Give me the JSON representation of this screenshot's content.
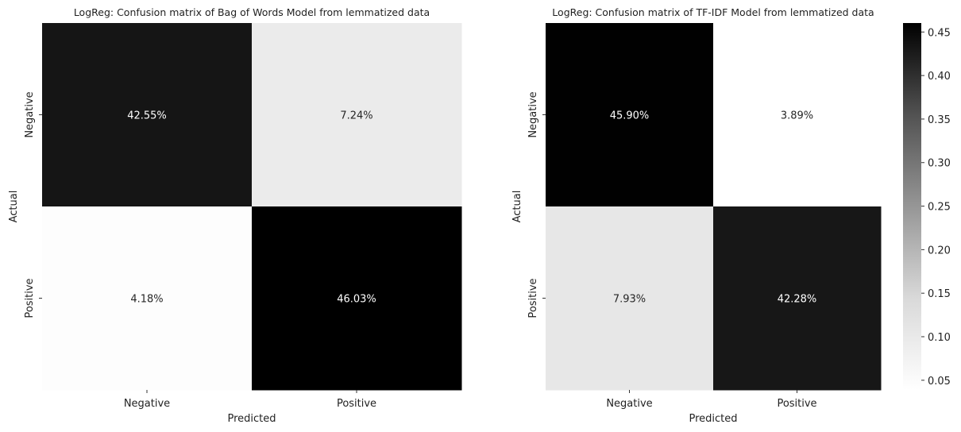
{
  "chart_data": [
    {
      "type": "heatmap",
      "title": "LogReg: Confusion matrix of Bag of Words Model from lemmatized data",
      "xlabel": "Predicted",
      "ylabel": "Actual",
      "x_categories": [
        "Negative",
        "Positive"
      ],
      "y_categories": [
        "Negative",
        "Positive"
      ],
      "values": [
        [
          0.4255,
          0.0724
        ],
        [
          0.0418,
          0.4603
        ]
      ],
      "labels": [
        [
          "42.55%",
          "7.24%"
        ],
        [
          "4.18%",
          "46.03%"
        ]
      ],
      "colormap": "Greys"
    },
    {
      "type": "heatmap",
      "title": "LogReg: Confusion matrix of TF-IDF Model from lemmatized data",
      "xlabel": "Predicted",
      "ylabel": "Actual",
      "x_categories": [
        "Negative",
        "Positive"
      ],
      "y_categories": [
        "Negative",
        "Positive"
      ],
      "values": [
        [
          0.459,
          0.0389
        ],
        [
          0.0793,
          0.4228
        ]
      ],
      "labels": [
        [
          "45.90%",
          "3.89%"
        ],
        [
          "7.93%",
          "42.28%"
        ]
      ],
      "colormap": "Greys"
    }
  ],
  "colorbar": {
    "ticks": [
      "0.05",
      "0.10",
      "0.15",
      "0.20",
      "0.25",
      "0.30",
      "0.35",
      "0.40",
      "0.45"
    ],
    "tick_values": [
      0.05,
      0.1,
      0.15,
      0.2,
      0.25,
      0.3,
      0.35,
      0.4,
      0.45
    ],
    "range": [
      0.0389,
      0.4603
    ]
  }
}
